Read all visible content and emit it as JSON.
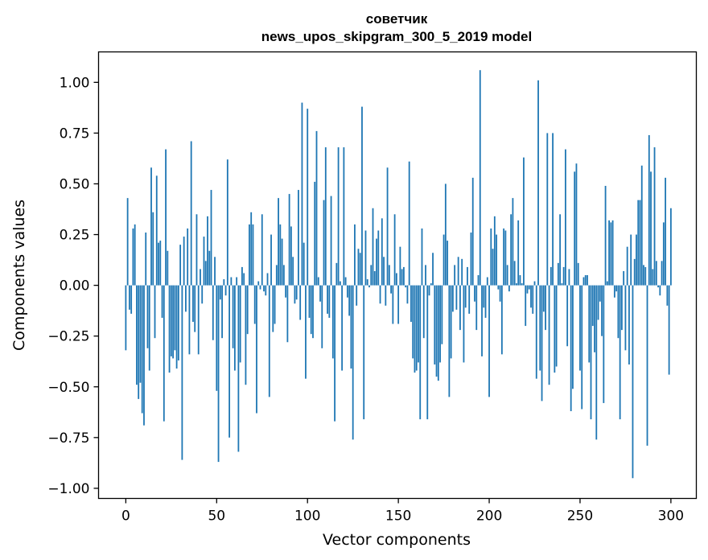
{
  "chart_data": {
    "type": "bar",
    "title_line1": "советчик",
    "title_line2": "news_upos_skipgram_300_5_2019 model",
    "xlabel": "Vector components",
    "ylabel": "Components values",
    "xlim": [
      -15,
      314
    ],
    "ylim": [
      -1.05,
      1.15
    ],
    "xticks": [
      0,
      50,
      100,
      150,
      200,
      250,
      300
    ],
    "yticks": [
      -1.0,
      -0.75,
      -0.5,
      -0.25,
      0.0,
      0.25,
      0.5,
      0.75,
      1.0
    ],
    "xtick_labels": [
      "0",
      "50",
      "100",
      "150",
      "200",
      "250",
      "300"
    ],
    "ytick_labels": [
      "−1.00",
      "−0.75",
      "−0.50",
      "−0.25",
      "0.00",
      "0.25",
      "0.50",
      "0.75",
      "1.00"
    ],
    "bar_color": "#1f77b4",
    "values": [
      -0.32,
      0.43,
      -0.12,
      -0.14,
      0.28,
      0.3,
      -0.49,
      -0.56,
      -0.48,
      -0.63,
      -0.69,
      0.26,
      -0.31,
      -0.42,
      0.58,
      0.36,
      -0.26,
      0.54,
      0.21,
      0.22,
      -0.16,
      -0.67,
      0.67,
      0.17,
      -0.43,
      -0.35,
      -0.36,
      -0.32,
      -0.41,
      -0.37,
      0.2,
      -0.86,
      0.24,
      -0.13,
      0.28,
      -0.34,
      0.71,
      -0.18,
      -0.23,
      0.35,
      -0.34,
      0.08,
      -0.09,
      0.24,
      0.12,
      0.34,
      0.17,
      0.47,
      -0.27,
      0.14,
      -0.52,
      -0.87,
      -0.07,
      -0.26,
      0.03,
      -0.05,
      0.62,
      -0.75,
      0.04,
      -0.31,
      -0.42,
      0.04,
      -0.82,
      -0.38,
      0.09,
      0.06,
      -0.49,
      -0.24,
      0.3,
      0.36,
      0.3,
      -0.19,
      -0.63,
      0.02,
      -0.02,
      0.35,
      -0.03,
      -0.05,
      0.06,
      -0.55,
      0.25,
      -0.23,
      -0.19,
      0.1,
      0.43,
      0.3,
      0.23,
      0.1,
      -0.06,
      -0.28,
      0.45,
      0.29,
      0.14,
      -0.09,
      -0.07,
      0.47,
      -0.17,
      0.9,
      0.21,
      -0.46,
      0.87,
      -0.16,
      -0.24,
      -0.26,
      0.51,
      0.76,
      0.04,
      -0.08,
      -0.31,
      0.42,
      0.68,
      -0.14,
      -0.16,
      0.44,
      -0.36,
      -0.67,
      0.11,
      0.68,
      0.02,
      -0.42,
      0.68,
      0.04,
      -0.06,
      -0.15,
      -0.41,
      -0.76,
      0.3,
      -0.1,
      0.18,
      0.16,
      0.88,
      -0.66,
      0.27,
      0.03,
      -0.01,
      0.1,
      0.38,
      0.07,
      0.23,
      0.27,
      -0.09,
      0.33,
      0.14,
      -0.1,
      0.58,
      0.1,
      -0.04,
      -0.19,
      0.35,
      0.06,
      -0.19,
      0.19,
      0.08,
      0.09,
      -0.01,
      -0.09,
      0.61,
      -0.18,
      -0.36,
      -0.43,
      -0.42,
      -0.38,
      -0.66,
      0.28,
      -0.26,
      0.1,
      -0.66,
      -0.05,
      0.01,
      0.16,
      -0.39,
      -0.45,
      -0.47,
      -0.38,
      -0.29,
      0.25,
      0.5,
      0.22,
      -0.55,
      -0.36,
      -0.13,
      0.1,
      -0.12,
      0.14,
      -0.22,
      0.13,
      -0.38,
      -0.11,
      0.09,
      -0.14,
      0.26,
      0.53,
      -0.08,
      -0.22,
      0.05,
      1.06,
      -0.35,
      -0.11,
      -0.16,
      0.04,
      -0.55,
      0.28,
      0.18,
      0.34,
      0.25,
      -0.02,
      -0.08,
      -0.34,
      0.28,
      0.27,
      0.1,
      -0.03,
      0.35,
      0.43,
      0.12,
      0.01,
      0.32,
      0.05,
      0.01,
      0.63,
      -0.2,
      -0.04,
      -0.02,
      -0.11,
      -0.14,
      0.02,
      -0.46,
      1.01,
      -0.42,
      -0.57,
      -0.13,
      -0.22,
      0.75,
      -0.49,
      0.09,
      0.75,
      -0.43,
      -0.4,
      0.11,
      0.35,
      0.01,
      0.09,
      0.67,
      -0.3,
      0.08,
      -0.62,
      -0.51,
      0.56,
      0.6,
      0.11,
      -0.42,
      -0.61,
      0.04,
      0.05,
      0.05,
      -0.38,
      -0.66,
      -0.2,
      -0.33,
      -0.76,
      -0.17,
      -0.08,
      -0.25,
      -0.58,
      0.49,
      0.02,
      0.32,
      0.31,
      0.32,
      -0.06,
      -0.03,
      -0.26,
      -0.66,
      -0.22,
      0.07,
      -0.32,
      0.19,
      -0.39,
      0.25,
      -0.95,
      0.13,
      0.25,
      0.42,
      0.42,
      0.59,
      0.1,
      0.09,
      -0.79,
      0.74,
      0.56,
      0.08,
      0.68,
      0.12,
      -0.01,
      -0.05,
      0.12,
      0.31,
      0.53,
      -0.1,
      -0.44,
      0.38
    ]
  }
}
